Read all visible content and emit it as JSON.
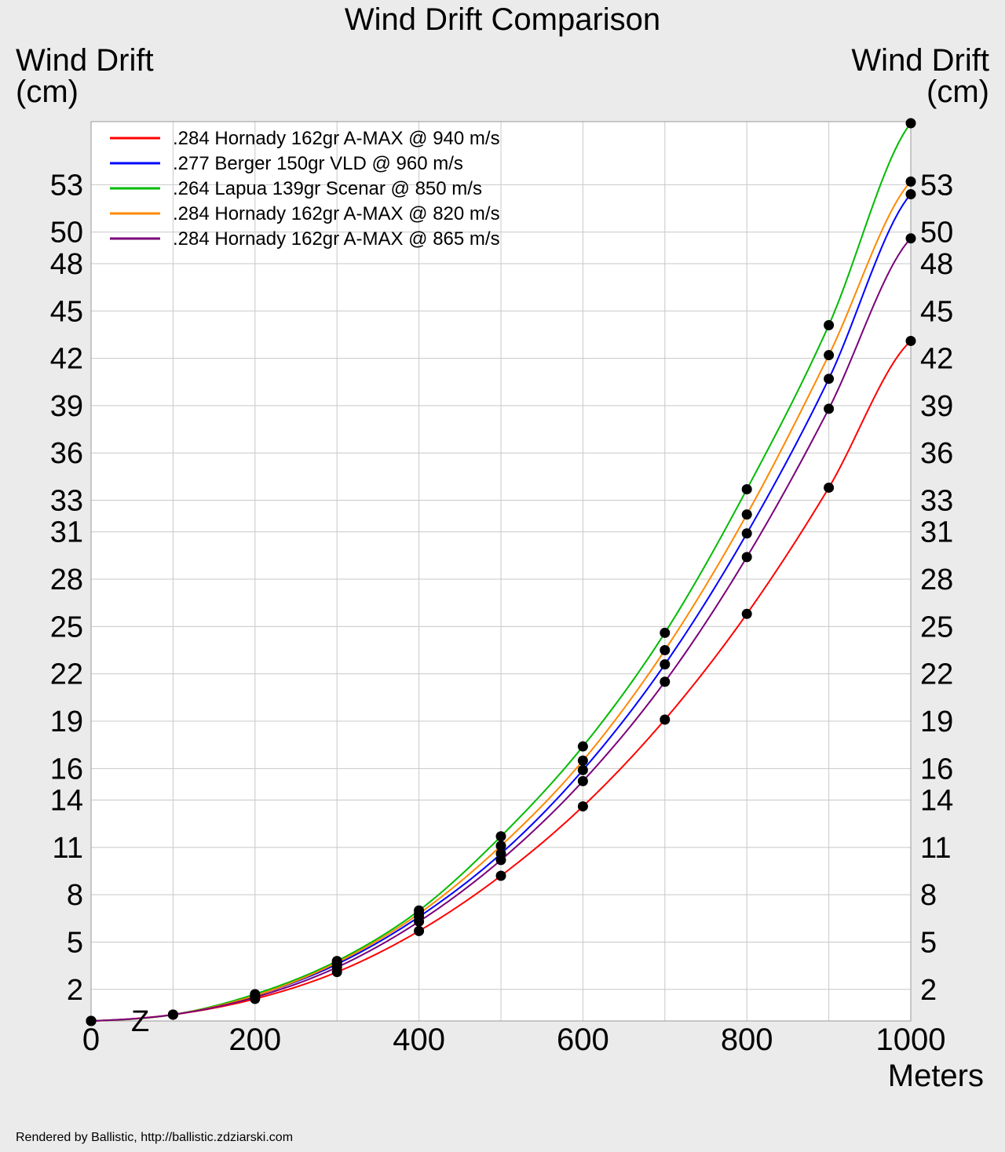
{
  "chart_data": {
    "type": "line",
    "title": "Wind Drift Comparison",
    "ylabel_left": [
      "Wind Drift",
      "(cm)"
    ],
    "ylabel_right": [
      "Wind Drift",
      "(cm)"
    ],
    "xlabel": "Meters",
    "xlim": [
      0,
      1000
    ],
    "ylim": [
      0,
      57
    ],
    "x_ticks": [
      0,
      200,
      400,
      600,
      800,
      1000
    ],
    "x_gridlines": [
      100,
      200,
      300,
      400,
      500,
      600,
      700,
      800,
      900
    ],
    "y_ticks": [
      2,
      5,
      8,
      11,
      14,
      16,
      19,
      22,
      25,
      28,
      31,
      33,
      36,
      39,
      42,
      45,
      48,
      50,
      53
    ],
    "y_tick_labels": [
      "2",
      "5",
      "8",
      "11",
      "14",
      "16",
      "19",
      "22",
      "25",
      "28",
      "31",
      "33",
      "36",
      "39",
      "42",
      "45",
      "48",
      "50",
      "53"
    ],
    "grid": true,
    "legend_position": "top-left",
    "marker_label": "Z",
    "marker_x": 60,
    "x": [
      0,
      100,
      200,
      300,
      400,
      500,
      600,
      700,
      800,
      900,
      1000
    ],
    "series": [
      {
        "name": ".284 Hornady 162gr A-MAX @ 940 m/s",
        "color": "#ff0000",
        "values": [
          0,
          0.4,
          1.4,
          3.1,
          5.7,
          9.2,
          13.6,
          19.1,
          25.8,
          33.8,
          43.1
        ]
      },
      {
        "name": ".277 Berger 150gr VLD @ 960 m/s",
        "color": "#0000ff",
        "values": [
          0,
          0.4,
          1.6,
          3.6,
          6.6,
          10.6,
          15.9,
          22.6,
          30.9,
          40.7,
          52.4
        ]
      },
      {
        "name": ".264 Lapua 139gr Scenar @ 850 m/s",
        "color": "#00bb00",
        "values": [
          0,
          0.4,
          1.7,
          3.8,
          7.0,
          11.7,
          17.4,
          24.6,
          33.7,
          44.1,
          56.9
        ]
      },
      {
        "name": ".284 Hornady 162gr A-MAX @ 820 m/s",
        "color": "#ff8800",
        "values": [
          0,
          0.4,
          1.6,
          3.7,
          6.8,
          11.1,
          16.5,
          23.5,
          32.1,
          42.2,
          53.2
        ]
      },
      {
        "name": ".284 Hornady 162gr A-MAX @ 865 m/s",
        "color": "#7a007a",
        "values": [
          0,
          0.4,
          1.5,
          3.4,
          6.3,
          10.2,
          15.2,
          21.5,
          29.4,
          38.8,
          49.6
        ]
      }
    ]
  },
  "footer": "Rendered by Ballistic, http://ballistic.zdziarski.com"
}
